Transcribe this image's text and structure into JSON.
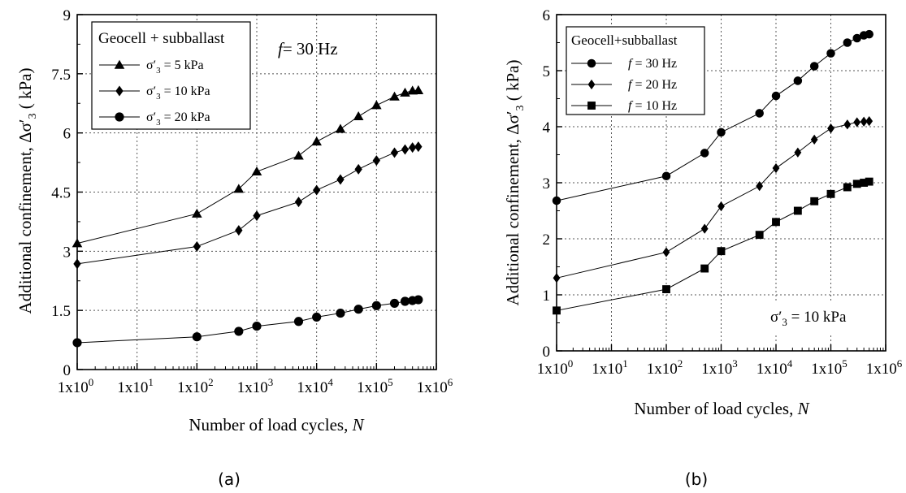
{
  "chart_data": [
    {
      "type": "line",
      "panel_label": "(a)",
      "xlabel": "Number of load cycles, ",
      "xlabel_italic": "N",
      "ylabel": "Additional confinement, Δσ′3 ( kPa)",
      "x_scale": "log",
      "xlim": [
        1,
        1000000
      ],
      "ylim": [
        0,
        9
      ],
      "y_ticks": [
        0,
        1.5,
        3,
        4.5,
        6,
        7.5,
        9
      ],
      "y_tick_labels": [
        "0",
        "1.5",
        "3",
        "4.5",
        "6",
        "7.5",
        "9"
      ],
      "x_ticks": [
        1,
        10,
        100,
        1000,
        10000,
        100000,
        1000000
      ],
      "x_tick_labels": [
        {
          "base": "1x10",
          "exp": "0"
        },
        {
          "base": "1x10",
          "exp": "1"
        },
        {
          "base": "1x10",
          "exp": "2"
        },
        {
          "base": "1x10",
          "exp": "3"
        },
        {
          "base": "1x10",
          "exp": "4"
        },
        {
          "base": "1x10",
          "exp": "5"
        },
        {
          "base": "1x10",
          "exp": "6"
        }
      ],
      "grid": true,
      "legend_title": "Geocell + subballast",
      "legend_placement": "top-left",
      "annotation": {
        "italic": "f",
        "text": "= 30 Hz"
      },
      "series": [
        {
          "name": "σ′3 = 5 kPa",
          "label": {
            "sym": "σ′",
            "sub": "3",
            "rest": " = 5 kPa"
          },
          "marker": "triangle",
          "x": [
            1,
            100,
            500,
            1000,
            5000,
            10000,
            25000,
            50000,
            100000,
            200000,
            300000,
            400000,
            500000
          ],
          "y": [
            3.2,
            3.95,
            4.58,
            5.02,
            5.42,
            5.78,
            6.1,
            6.42,
            6.7,
            6.92,
            7.02,
            7.07,
            7.08
          ]
        },
        {
          "name": "σ′3 = 10 kPa",
          "label": {
            "sym": "σ′",
            "sub": "3",
            "rest": " = 10 kPa"
          },
          "marker": "diamond",
          "x": [
            1,
            100,
            500,
            1000,
            5000,
            10000,
            25000,
            50000,
            100000,
            200000,
            300000,
            400000,
            500000
          ],
          "y": [
            2.68,
            3.12,
            3.53,
            3.9,
            4.25,
            4.55,
            4.82,
            5.08,
            5.3,
            5.5,
            5.58,
            5.63,
            5.65
          ]
        },
        {
          "name": "σ′3 = 20 kPa",
          "label": {
            "sym": "σ′",
            "sub": "3",
            "rest": " = 20 kPa"
          },
          "marker": "circle",
          "x": [
            1,
            100,
            500,
            1000,
            5000,
            10000,
            25000,
            50000,
            100000,
            200000,
            300000,
            400000,
            500000
          ],
          "y": [
            0.68,
            0.83,
            0.97,
            1.1,
            1.22,
            1.33,
            1.43,
            1.53,
            1.62,
            1.68,
            1.73,
            1.75,
            1.77
          ]
        }
      ]
    },
    {
      "type": "line",
      "panel_label": "(b)",
      "xlabel": "Number of load cycles, ",
      "xlabel_italic": "N",
      "ylabel": "Additional confinement, Δσ′3 ( kPa)",
      "x_scale": "log",
      "xlim": [
        1,
        1000000
      ],
      "ylim": [
        0,
        6
      ],
      "y_ticks": [
        0,
        1,
        2,
        3,
        4,
        5,
        6
      ],
      "y_tick_labels": [
        "0",
        "1",
        "2",
        "3",
        "4",
        "5",
        "6"
      ],
      "x_ticks": [
        1,
        10,
        100,
        1000,
        10000,
        100000,
        1000000
      ],
      "x_tick_labels": [
        {
          "base": "1x10",
          "exp": "0"
        },
        {
          "base": "1x10",
          "exp": "1"
        },
        {
          "base": "1x10",
          "exp": "2"
        },
        {
          "base": "1x10",
          "exp": "3"
        },
        {
          "base": "1x10",
          "exp": "4"
        },
        {
          "base": "1x10",
          "exp": "5"
        },
        {
          "base": "1x10",
          "exp": "6"
        }
      ],
      "grid": true,
      "legend_title": "Geocell+subballast",
      "legend_placement": "top-left",
      "annotation": {
        "sym": "σ′",
        "sub": "3",
        "text": " = 10 kPa"
      },
      "series": [
        {
          "name": "f = 30 Hz",
          "label": {
            "italic": "f",
            "rest": " = 30 Hz"
          },
          "marker": "circle",
          "x": [
            1,
            100,
            500,
            1000,
            5000,
            10000,
            25000,
            50000,
            100000,
            200000,
            300000,
            400000,
            500000
          ],
          "y": [
            2.68,
            3.12,
            3.53,
            3.9,
            4.24,
            4.55,
            4.82,
            5.08,
            5.31,
            5.5,
            5.58,
            5.63,
            5.65
          ]
        },
        {
          "name": "f = 20 Hz",
          "label": {
            "italic": "f",
            "rest": " = 20 Hz"
          },
          "marker": "diamond",
          "x": [
            1,
            100,
            500,
            1000,
            5000,
            10000,
            25000,
            50000,
            100000,
            200000,
            300000,
            400000,
            500000
          ],
          "y": [
            1.3,
            1.76,
            2.18,
            2.58,
            2.94,
            3.26,
            3.54,
            3.77,
            3.97,
            4.04,
            4.08,
            4.09,
            4.1
          ]
        },
        {
          "name": "f = 10 Hz",
          "label": {
            "italic": "f",
            "rest": " = 10 Hz"
          },
          "marker": "square",
          "x": [
            1,
            100,
            500,
            1000,
            5000,
            10000,
            25000,
            50000,
            100000,
            200000,
            300000,
            400000,
            500000
          ],
          "y": [
            0.72,
            1.1,
            1.47,
            1.78,
            2.07,
            2.3,
            2.5,
            2.67,
            2.8,
            2.92,
            2.98,
            3.0,
            3.02
          ]
        }
      ]
    }
  ]
}
